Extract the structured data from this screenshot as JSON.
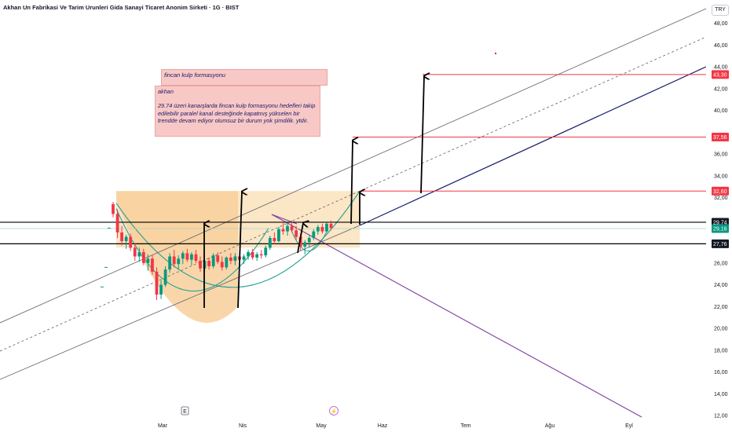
{
  "header": {
    "title": "Akhan Un Fabrikasi Ve Tarim Urunleri Gida Sanayi Ticaret Anonim Sirketi · 1G · BIST",
    "currency": "TRY"
  },
  "notes": {
    "pattern_label": "fincan kulp formasyonu",
    "body_title": "akhan",
    "body_text": "29.74 üzeri kanaışlarda fincan kulp formasyonu hedefleri takip edilebilir paralel kanal desteğinde kapatmış yükselen bir trendde devam ediyor olumsuz bir  durum yok şimdilik. ytdir."
  },
  "markers": {
    "earnings": "E",
    "dividend": "⚡"
  },
  "chart_data": {
    "type": "candlestick",
    "y_axis": {
      "ticks": [
        12,
        14,
        16,
        18,
        20,
        22,
        24,
        26,
        28,
        30,
        32,
        34,
        36,
        38,
        40,
        42,
        44,
        46,
        48
      ],
      "ylim": [
        11.5,
        50.5
      ]
    },
    "x_axis": {
      "months": [
        "Mar",
        "Nis",
        "May",
        "Haz",
        "Tem",
        "Ağu",
        "Eyl"
      ]
    },
    "price_labels": [
      {
        "value": "43,30",
        "kind": "target",
        "color": "#f23645"
      },
      {
        "value": "37,56",
        "kind": "target",
        "color": "#f23645"
      },
      {
        "value": "32,60",
        "kind": "target",
        "color": "#f23645"
      },
      {
        "value": "29,74",
        "kind": "level",
        "color": "#131722"
      },
      {
        "value": "29,16",
        "kind": "last",
        "color": "#089981"
      },
      {
        "value": "27,76",
        "kind": "level",
        "color": "#131722"
      }
    ],
    "horizontal_levels": [
      43.3,
      37.56,
      32.6,
      29.74,
      27.76
    ],
    "last_price": 29.16,
    "candles": [
      [
        31.4,
        31.6,
        30.2,
        30.5
      ],
      [
        30.5,
        30.9,
        28.3,
        28.8
      ],
      [
        28.8,
        29.4,
        27.6,
        28.0
      ],
      [
        28.0,
        28.6,
        27.3,
        28.4
      ],
      [
        28.4,
        28.7,
        27.1,
        27.4
      ],
      [
        27.4,
        27.8,
        26.2,
        26.6
      ],
      [
        26.6,
        27.4,
        26.1,
        27.0
      ],
      [
        27.0,
        27.3,
        25.8,
        26.0
      ],
      [
        26.0,
        26.8,
        25.3,
        26.4
      ],
      [
        26.4,
        26.7,
        24.9,
        25.2
      ],
      [
        25.2,
        25.6,
        22.6,
        23.1
      ],
      [
        23.1,
        24.4,
        22.7,
        24.0
      ],
      [
        24.0,
        25.7,
        23.8,
        25.4
      ],
      [
        25.4,
        26.9,
        25.1,
        26.6
      ],
      [
        26.6,
        27.2,
        25.6,
        25.9
      ],
      [
        25.9,
        26.7,
        25.4,
        26.4
      ],
      [
        26.4,
        27.1,
        25.9,
        26.9
      ],
      [
        26.9,
        27.3,
        26.1,
        26.3
      ],
      [
        26.3,
        27.0,
        25.8,
        26.8
      ],
      [
        26.8,
        27.2,
        26.0,
        26.2
      ],
      [
        26.2,
        26.6,
        25.2,
        25.5
      ],
      [
        25.5,
        26.4,
        25.2,
        26.2
      ],
      [
        26.2,
        26.5,
        25.4,
        25.7
      ],
      [
        25.7,
        26.9,
        25.5,
        26.7
      ],
      [
        26.7,
        27.0,
        25.9,
        26.1
      ],
      [
        26.1,
        26.6,
        25.3,
        25.6
      ],
      [
        25.6,
        26.6,
        25.4,
        26.5
      ],
      [
        26.5,
        26.9,
        25.9,
        26.2
      ],
      [
        26.2,
        26.9,
        25.8,
        26.6
      ],
      [
        26.6,
        27.1,
        26.1,
        26.3
      ],
      [
        26.3,
        26.8,
        25.9,
        26.6
      ],
      [
        26.6,
        27.2,
        26.3,
        27.0
      ],
      [
        27.0,
        27.3,
        26.3,
        26.5
      ],
      [
        26.5,
        27.0,
        26.2,
        26.8
      ],
      [
        26.8,
        27.2,
        26.4,
        26.7
      ],
      [
        26.7,
        27.6,
        26.5,
        27.4
      ],
      [
        27.4,
        28.5,
        27.2,
        28.3
      ],
      [
        28.3,
        28.8,
        27.7,
        28.0
      ],
      [
        28.0,
        29.3,
        27.9,
        29.1
      ],
      [
        29.1,
        29.8,
        28.6,
        28.9
      ],
      [
        28.9,
        29.7,
        28.5,
        29.4
      ],
      [
        29.4,
        29.9,
        28.8,
        29.0
      ],
      [
        29.0,
        29.4,
        28.1,
        28.4
      ],
      [
        28.4,
        28.7,
        27.1,
        27.5
      ],
      [
        27.5,
        28.1,
        26.8,
        27.9
      ],
      [
        27.9,
        28.5,
        27.4,
        28.3
      ],
      [
        28.3,
        29.1,
        28.1,
        28.9
      ],
      [
        28.9,
        29.5,
        28.6,
        29.3
      ],
      [
        29.3,
        29.6,
        28.7,
        28.9
      ],
      [
        28.9,
        29.7,
        28.8,
        29.6
      ],
      [
        29.6,
        29.9,
        29.0,
        29.2
      ]
    ]
  }
}
